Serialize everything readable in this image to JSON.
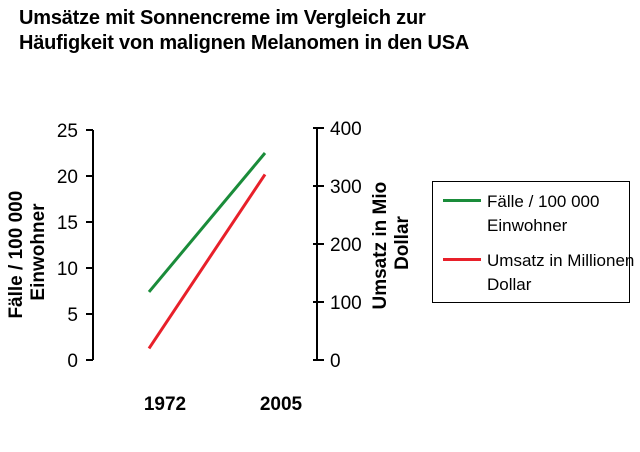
{
  "title_line1": "Umsätze mit Sonnencreme im Vergleich zur",
  "title_line2": "Häufigkeit von malignen Melanomen in den USA",
  "colors": {
    "faelle": "#1a8c3a",
    "umsatz": "#e8202a",
    "axis": "#000000"
  },
  "chart_data": {
    "type": "line",
    "categories": [
      "1972",
      "2005"
    ],
    "series": [
      {
        "name": "Fälle / 100 000 Einwohner",
        "axis": "left",
        "values": [
          7.4,
          22.5
        ],
        "color": "#1a8c3a"
      },
      {
        "name": "Umsatz in Millionen Dollar",
        "axis": "right",
        "values": [
          20,
          320
        ],
        "color": "#e8202a"
      }
    ],
    "left_axis": {
      "label_line1": "Fälle / 100 000",
      "label_line2": "Einwohner",
      "ylim": [
        0,
        25
      ],
      "ticks": [
        "0",
        "5",
        "10",
        "15",
        "20",
        "25"
      ]
    },
    "right_axis": {
      "label_line1": "Umsatz in Mio",
      "label_line2": "Dollar",
      "ylim": [
        0,
        400
      ],
      "ticks": [
        "0",
        "100",
        "200",
        "300",
        "400"
      ]
    },
    "legend": {
      "position": "right",
      "items": [
        {
          "line1": "Fälle / 100 000",
          "line2": "Einwohner",
          "color": "#1a8c3a"
        },
        {
          "line1": "Umsatz in Millionen",
          "line2": "Dollar",
          "color": "#e8202a"
        }
      ]
    }
  }
}
